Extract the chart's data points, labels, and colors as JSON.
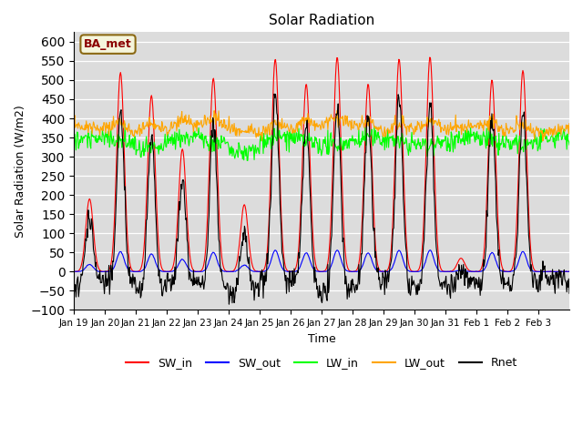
{
  "title": "Solar Radiation",
  "xlabel": "Time",
  "ylabel": "Solar Radiation (W/m2)",
  "ylim": [
    -100,
    625
  ],
  "yticks": [
    -100,
    -50,
    0,
    50,
    100,
    150,
    200,
    250,
    300,
    350,
    400,
    450,
    500,
    550,
    600
  ],
  "xtick_labels": [
    "Jan 19",
    "Jan 20",
    "Jan 21",
    "Jan 22",
    "Jan 23",
    "Jan 24",
    "Jan 25",
    "Jan 26",
    "Jan 27",
    "Jan 28",
    "Jan 29",
    "Jan 30",
    "Jan 31",
    "Feb 1",
    "Feb 2",
    "Feb 3"
  ],
  "legend_entries": [
    "SW_in",
    "SW_out",
    "LW_in",
    "LW_out",
    "Rnet"
  ],
  "legend_colors": [
    "red",
    "blue",
    "lime",
    "orange",
    "black"
  ],
  "bg_color": "#dcdcdc",
  "annotation_text": "BA_met",
  "annotation_color": "#8b0000",
  "day_peaks_sw": [
    190,
    520,
    460,
    320,
    505,
    175,
    555,
    490,
    560,
    490,
    555,
    560,
    35,
    500,
    525,
    0
  ]
}
